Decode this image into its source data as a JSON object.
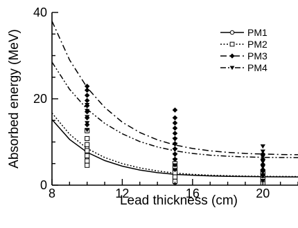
{
  "chart_data": {
    "type": "scatter",
    "title": "",
    "xlabel": "Lead thickness (cm)",
    "ylabel": "Absorbed energy (MeV)",
    "xlim": [
      8,
      22
    ],
    "ylim": [
      0,
      40
    ],
    "xticks": [
      8,
      12,
      16,
      20
    ],
    "yticks": [
      0,
      20,
      40
    ],
    "grid": false,
    "legend_position": "top-right",
    "series": [
      {
        "name": "PM1",
        "marker": "open-circle",
        "line_style": "solid",
        "fit_curve": [
          [
            8,
            15.2
          ],
          [
            9,
            10.6
          ],
          [
            10,
            7.6
          ],
          [
            11,
            5.7
          ],
          [
            12,
            4.4
          ],
          [
            13,
            3.5
          ],
          [
            14,
            2.9
          ],
          [
            15,
            2.5
          ],
          [
            16,
            2.3
          ],
          [
            17,
            2.15
          ],
          [
            18,
            2.05
          ],
          [
            19,
            2.0
          ],
          [
            20,
            1.95
          ],
          [
            21,
            1.92
          ],
          [
            22,
            1.9
          ]
        ],
        "points": [
          [
            10,
            5.2
          ],
          [
            10,
            6.0
          ],
          [
            10,
            7.4
          ],
          [
            10,
            8.6
          ],
          [
            15,
            0.6
          ],
          [
            15,
            1.1
          ],
          [
            15,
            1.6
          ],
          [
            15,
            2.2
          ],
          [
            15,
            2.8
          ],
          [
            20,
            0.3
          ],
          [
            20,
            0.8
          ],
          [
            20,
            1.4
          ],
          [
            20,
            2.0
          ]
        ]
      },
      {
        "name": "PM2",
        "marker": "open-square",
        "line_style": "dotted",
        "fit_curve": [
          [
            8,
            16.7
          ],
          [
            9,
            11.8
          ],
          [
            10,
            8.5
          ],
          [
            11,
            6.4
          ],
          [
            12,
            5.0
          ],
          [
            13,
            4.0
          ],
          [
            14,
            3.3
          ],
          [
            15,
            2.8
          ],
          [
            16,
            2.5
          ],
          [
            17,
            2.3
          ],
          [
            18,
            2.2
          ],
          [
            19,
            2.1
          ],
          [
            20,
            2.05
          ],
          [
            21,
            2.02
          ],
          [
            22,
            2.0
          ]
        ],
        "points": [
          [
            10,
            4.6
          ],
          [
            10,
            5.6
          ],
          [
            10,
            6.8
          ],
          [
            10,
            8.0
          ],
          [
            10,
            9.4
          ],
          [
            10,
            10.8
          ],
          [
            10,
            12.6
          ],
          [
            15,
            0.9
          ],
          [
            15,
            1.9
          ],
          [
            15,
            2.9
          ],
          [
            15,
            3.9
          ],
          [
            15,
            5.0
          ],
          [
            20,
            0.5
          ],
          [
            20,
            1.3
          ],
          [
            20,
            2.3
          ],
          [
            20,
            3.1
          ]
        ]
      },
      {
        "name": "PM3",
        "marker": "filled-diamond",
        "line_style": "dash-dot",
        "fit_curve": [
          [
            8,
            38.0
          ],
          [
            9,
            29.0
          ],
          [
            10,
            22.6
          ],
          [
            11,
            18.0
          ],
          [
            12,
            14.6
          ],
          [
            13,
            12.2
          ],
          [
            14,
            10.5
          ],
          [
            15,
            9.3
          ],
          [
            16,
            8.5
          ],
          [
            17,
            7.95
          ],
          [
            18,
            7.6
          ],
          [
            19,
            7.35
          ],
          [
            20,
            7.2
          ],
          [
            21,
            7.1
          ],
          [
            22,
            7.05
          ]
        ],
        "points": [
          [
            10,
            14.0
          ],
          [
            10,
            15.6
          ],
          [
            10,
            17.0
          ],
          [
            10,
            18.4
          ],
          [
            10,
            19.6
          ],
          [
            10,
            20.8
          ],
          [
            10,
            22.0
          ],
          [
            10,
            22.9
          ],
          [
            15,
            6.0
          ],
          [
            15,
            7.2
          ],
          [
            15,
            8.4
          ],
          [
            15,
            9.6
          ],
          [
            15,
            10.8
          ],
          [
            15,
            12.0
          ],
          [
            15,
            13.2
          ],
          [
            15,
            14.4
          ],
          [
            15,
            15.6
          ],
          [
            15,
            17.4
          ],
          [
            20,
            2.4
          ],
          [
            20,
            3.6
          ],
          [
            20,
            4.8
          ],
          [
            20,
            6.0
          ],
          [
            20,
            7.2
          ]
        ]
      },
      {
        "name": "PM4",
        "marker": "filled-triangle-down",
        "line_style": "dash-dot-dot",
        "fit_curve": [
          [
            8,
            28.5
          ],
          [
            9,
            22.2
          ],
          [
            10,
            17.6
          ],
          [
            11,
            14.3
          ],
          [
            12,
            11.9
          ],
          [
            13,
            10.1
          ],
          [
            14,
            8.85
          ],
          [
            15,
            7.95
          ],
          [
            16,
            7.35
          ],
          [
            17,
            6.95
          ],
          [
            18,
            6.7
          ],
          [
            19,
            6.55
          ],
          [
            20,
            6.45
          ],
          [
            21,
            6.4
          ],
          [
            22,
            6.38
          ]
        ],
        "points": [
          [
            10,
            12.8
          ],
          [
            10,
            14.4
          ],
          [
            10,
            15.8
          ],
          [
            10,
            17.2
          ],
          [
            10,
            18.6
          ],
          [
            15,
            3.5
          ],
          [
            15,
            4.6
          ],
          [
            15,
            5.8
          ],
          [
            15,
            7.0
          ],
          [
            15,
            8.2
          ],
          [
            15,
            9.4
          ],
          [
            15,
            10.6
          ],
          [
            20,
            1.0
          ],
          [
            20,
            2.0
          ],
          [
            20,
            3.0
          ],
          [
            20,
            4.2
          ],
          [
            20,
            5.4
          ],
          [
            20,
            6.6
          ],
          [
            20,
            7.8
          ],
          [
            20,
            9.0
          ]
        ]
      }
    ]
  }
}
